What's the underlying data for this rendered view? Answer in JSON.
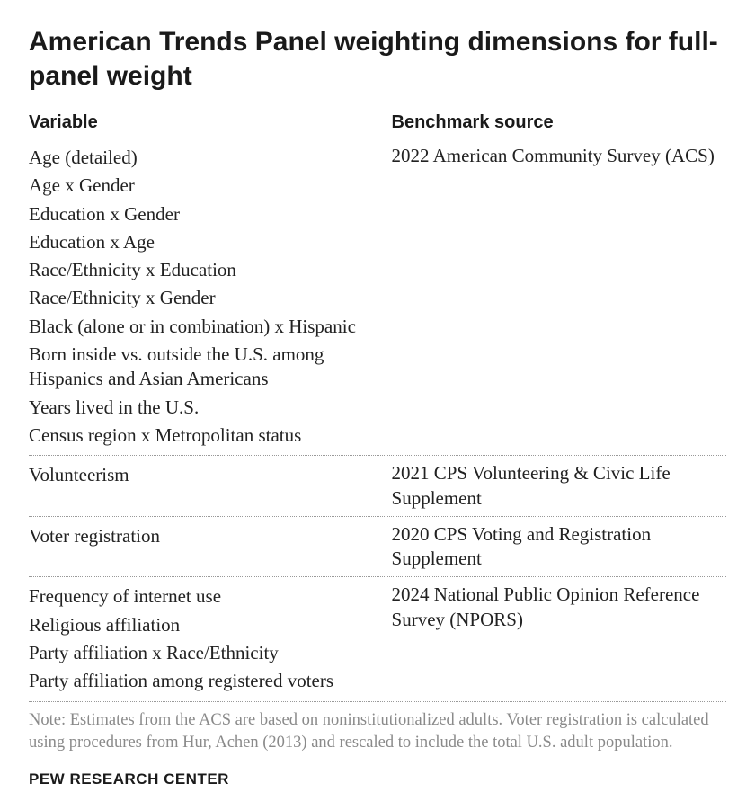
{
  "title": "American Trends Panel weighting dimensions for full-panel weight",
  "headers": {
    "variable": "Variable",
    "source": "Benchmark source"
  },
  "groups": [
    {
      "source": "2022 American Community Survey (ACS)",
      "variables": [
        "Age (detailed)",
        "Age x Gender",
        "Education x Gender",
        "Education x Age",
        "Race/Ethnicity x Education",
        "Race/Ethnicity x Gender",
        "Black (alone or in combination) x Hispanic",
        "Born inside vs. outside the U.S. among Hispanics and Asian Americans",
        "Years lived in the U.S.",
        "Census region x Metropolitan status"
      ]
    },
    {
      "source": "2021 CPS Volunteering & Civic Life Supplement",
      "variables": [
        "Volunteerism"
      ]
    },
    {
      "source": "2020 CPS Voting and Registration Supplement",
      "variables": [
        "Voter registration"
      ]
    },
    {
      "source": "2024 National Public Opinion Reference Survey (NPORS)",
      "variables": [
        "Frequency of internet use",
        "Religious affiliation",
        "Party affiliation x Race/Ethnicity",
        "Party affiliation among registered voters"
      ]
    }
  ],
  "note": "Note: Estimates from the ACS are based on noninstitutionalized adults. Voter registration is calculated using procedures from Hur, Achen (2013) and rescaled to include the total U.S. adult population.",
  "attribution": "PEW RESEARCH CENTER",
  "style": {
    "title_fontsize": 30,
    "header_fontsize": 20,
    "body_fontsize": 21,
    "note_fontsize": 18.5,
    "attribution_fontsize": 17,
    "text_color": "#222222",
    "title_color": "#1a1a1a",
    "note_color": "#8a8a8a",
    "border_color": "#999999",
    "background_color": "#ffffff",
    "col_var_width_pct": 52,
    "col_src_width_pct": 48
  }
}
